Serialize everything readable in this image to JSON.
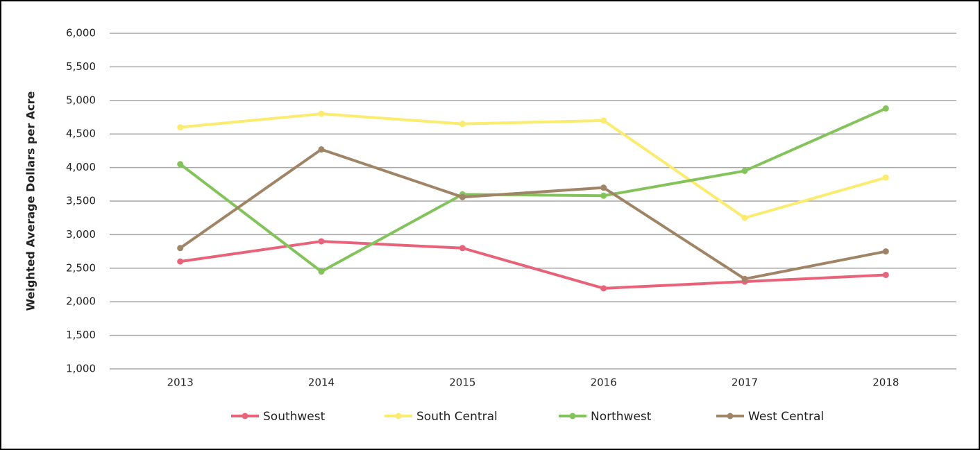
{
  "chart_data": {
    "type": "line",
    "y_label": "Weighted Average Dollars per Acre",
    "categories": [
      "2013",
      "2014",
      "2015",
      "2016",
      "2017",
      "2018"
    ],
    "series": [
      {
        "name": "Southwest",
        "color": "#e8637a",
        "values": [
          2600,
          2900,
          2800,
          2200,
          2300,
          2400
        ]
      },
      {
        "name": "South Central",
        "color": "#fbeb6e",
        "values": [
          4600,
          4800,
          4650,
          4700,
          3250,
          3850
        ]
      },
      {
        "name": "Northwest",
        "color": "#84c35c",
        "values": [
          4050,
          2450,
          3600,
          3580,
          3950,
          4880
        ]
      },
      {
        "name": "West Central",
        "color": "#a08466",
        "values": [
          2800,
          4270,
          3560,
          3700,
          2340,
          2750
        ]
      }
    ],
    "ylim": [
      1000,
      6000
    ],
    "yticks": [
      {
        "value": 1000,
        "label": "1,000"
      },
      {
        "value": 1500,
        "label": "1,500"
      },
      {
        "value": 2000,
        "label": "2,000"
      },
      {
        "value": 2500,
        "label": "2,500"
      },
      {
        "value": 3000,
        "label": "3,000"
      },
      {
        "value": 3500,
        "label": "3,500"
      },
      {
        "value": 4000,
        "label": "4,000"
      },
      {
        "value": 4500,
        "label": "4,500"
      },
      {
        "value": 5000,
        "label": "5,000"
      },
      {
        "value": 5500,
        "label": "5,500"
      },
      {
        "value": 6000,
        "label": "6,000"
      }
    ],
    "grid": true,
    "legend": "bottom"
  }
}
